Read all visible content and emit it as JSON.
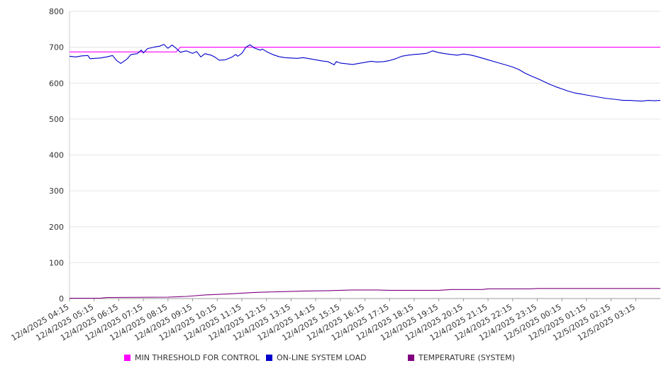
{
  "chart_data": {
    "type": "line",
    "title": "",
    "xlabel": "",
    "ylabel": "",
    "ylim": [
      0,
      800
    ],
    "yticks": [
      0,
      100,
      200,
      300,
      400,
      500,
      600,
      700,
      800
    ],
    "grid": true,
    "legend_position": "bottom",
    "x_ticks": [
      "12/4/2025 04:15",
      "12/4/2025 05:15",
      "12/4/2025 06:15",
      "12/4/2025 07:15",
      "12/4/2025 08:15",
      "12/4/2025 09:15",
      "12/4/2025 10:15",
      "12/4/2025 11:15",
      "12/4/2025 12:15",
      "12/4/2025 13:15",
      "12/4/2025 14:15",
      "12/4/2025 15:15",
      "12/4/2025 16:15",
      "12/4/2025 17:15",
      "12/4/2025 18:15",
      "12/4/2025 19:15",
      "12/4/2025 20:15",
      "12/4/2025 21:15",
      "12/4/2025 22:15",
      "12/4/2025 23:15",
      "12/5/2025 00:15",
      "12/5/2025 01:15",
      "12/5/2025 02:15",
      "12/5/2025 03:15"
    ],
    "x_start": "12/4/2025 04:15",
    "x_end": "12/5/2025 04:15",
    "series": [
      {
        "name": "MIN THRESHOLD FOR CONTROL",
        "color": "#ff00ff",
        "points": [
          [
            "12/4/2025 04:15",
            687
          ],
          [
            "12/4/2025 08:15",
            687
          ],
          [
            "12/4/2025 08:35",
            687
          ],
          [
            "12/4/2025 08:45",
            700
          ],
          [
            "12/5/2025 04:15",
            700
          ]
        ]
      },
      {
        "name": "ON-LINE SYSTEM LOAD",
        "color": "#0000cc",
        "points": [
          [
            "12/4/2025 04:15",
            675
          ],
          [
            "12/4/2025 04:30",
            673
          ],
          [
            "12/4/2025 04:45",
            676
          ],
          [
            "12/4/2025 05:00",
            677
          ],
          [
            "12/4/2025 05:05",
            668
          ],
          [
            "12/4/2025 05:30",
            670
          ],
          [
            "12/4/2025 05:45",
            673
          ],
          [
            "12/4/2025 06:00",
            677
          ],
          [
            "12/4/2025 06:10",
            663
          ],
          [
            "12/4/2025 06:20",
            655
          ],
          [
            "12/4/2025 06:35",
            667
          ],
          [
            "12/4/2025 06:45",
            680
          ],
          [
            "12/4/2025 07:00",
            682
          ],
          [
            "12/4/2025 07:10",
            692
          ],
          [
            "12/4/2025 07:15",
            684
          ],
          [
            "12/4/2025 07:25",
            696
          ],
          [
            "12/4/2025 07:40",
            700
          ],
          [
            "12/4/2025 07:55",
            703
          ],
          [
            "12/4/2025 08:05",
            708
          ],
          [
            "12/4/2025 08:15",
            697
          ],
          [
            "12/4/2025 08:25",
            706
          ],
          [
            "12/4/2025 08:35",
            697
          ],
          [
            "12/4/2025 08:45",
            686
          ],
          [
            "12/4/2025 09:00",
            690
          ],
          [
            "12/4/2025 09:15",
            683
          ],
          [
            "12/4/2025 09:25",
            688
          ],
          [
            "12/4/2025 09:35",
            673
          ],
          [
            "12/4/2025 09:45",
            682
          ],
          [
            "12/4/2025 10:00",
            678
          ],
          [
            "12/4/2025 10:10",
            672
          ],
          [
            "12/4/2025 10:20",
            664
          ],
          [
            "12/4/2025 10:35",
            665
          ],
          [
            "12/4/2025 10:50",
            672
          ],
          [
            "12/4/2025 11:00",
            680
          ],
          [
            "12/4/2025 11:05",
            675
          ],
          [
            "12/4/2025 11:15",
            683
          ],
          [
            "12/4/2025 11:25",
            700
          ],
          [
            "12/4/2025 11:35",
            707
          ],
          [
            "12/4/2025 11:45",
            698
          ],
          [
            "12/4/2025 12:00",
            692
          ],
          [
            "12/4/2025 12:05",
            695
          ],
          [
            "12/4/2025 12:15",
            688
          ],
          [
            "12/4/2025 12:30",
            680
          ],
          [
            "12/4/2025 12:45",
            674
          ],
          [
            "12/4/2025 13:00",
            671
          ],
          [
            "12/4/2025 13:15",
            670
          ],
          [
            "12/4/2025 13:30",
            669
          ],
          [
            "12/4/2025 13:45",
            671
          ],
          [
            "12/4/2025 14:00",
            668
          ],
          [
            "12/4/2025 14:15",
            665
          ],
          [
            "12/4/2025 14:30",
            662
          ],
          [
            "12/4/2025 14:45",
            660
          ],
          [
            "12/4/2025 15:00",
            651
          ],
          [
            "12/4/2025 15:05",
            660
          ],
          [
            "12/4/2025 15:15",
            656
          ],
          [
            "12/4/2025 15:30",
            654
          ],
          [
            "12/4/2025 15:45",
            652
          ],
          [
            "12/4/2025 16:00",
            655
          ],
          [
            "12/4/2025 16:15",
            658
          ],
          [
            "12/4/2025 16:30",
            661
          ],
          [
            "12/4/2025 16:45",
            659
          ],
          [
            "12/4/2025 17:00",
            660
          ],
          [
            "12/4/2025 17:15",
            663
          ],
          [
            "12/4/2025 17:30",
            668
          ],
          [
            "12/4/2025 17:45",
            675
          ],
          [
            "12/4/2025 18:00",
            678
          ],
          [
            "12/4/2025 18:15",
            680
          ],
          [
            "12/4/2025 18:30",
            681
          ],
          [
            "12/4/2025 18:45",
            683
          ],
          [
            "12/4/2025 19:00",
            690
          ],
          [
            "12/4/2025 19:15",
            685
          ],
          [
            "12/4/2025 19:30",
            682
          ],
          [
            "12/4/2025 19:45",
            680
          ],
          [
            "12/4/2025 20:00",
            678
          ],
          [
            "12/4/2025 20:15",
            681
          ],
          [
            "12/4/2025 20:30",
            679
          ],
          [
            "12/4/2025 20:45",
            675
          ],
          [
            "12/4/2025 21:00",
            670
          ],
          [
            "12/4/2025 21:15",
            665
          ],
          [
            "12/4/2025 21:30",
            660
          ],
          [
            "12/4/2025 21:45",
            655
          ],
          [
            "12/4/2025 22:00",
            650
          ],
          [
            "12/4/2025 22:15",
            645
          ],
          [
            "12/4/2025 22:30",
            638
          ],
          [
            "12/4/2025 22:45",
            628
          ],
          [
            "12/4/2025 23:00",
            620
          ],
          [
            "12/4/2025 23:15",
            613
          ],
          [
            "12/4/2025 23:30",
            605
          ],
          [
            "12/4/2025 23:45",
            597
          ],
          [
            "12/5/2025 00:00",
            590
          ],
          [
            "12/5/2025 00:15",
            584
          ],
          [
            "12/5/2025 00:30",
            578
          ],
          [
            "12/5/2025 00:45",
            573
          ],
          [
            "12/5/2025 01:00",
            570
          ],
          [
            "12/5/2025 01:15",
            567
          ],
          [
            "12/5/2025 01:30",
            564
          ],
          [
            "12/5/2025 01:45",
            561
          ],
          [
            "12/5/2025 02:00",
            558
          ],
          [
            "12/5/2025 02:15",
            556
          ],
          [
            "12/5/2025 02:30",
            554
          ],
          [
            "12/5/2025 02:45",
            552
          ],
          [
            "12/5/2025 03:00",
            552
          ],
          [
            "12/5/2025 03:15",
            551
          ],
          [
            "12/5/2025 03:30",
            550
          ],
          [
            "12/5/2025 03:45",
            552
          ],
          [
            "12/5/2025 04:00",
            551
          ],
          [
            "12/5/2025 04:15",
            552
          ]
        ]
      },
      {
        "name": "TEMPERATURE (SYSTEM)",
        "color": "#800080",
        "points": [
          [
            "12/4/2025 04:15",
            1
          ],
          [
            "12/4/2025 05:30",
            1
          ],
          [
            "12/4/2025 05:45",
            3
          ],
          [
            "12/4/2025 08:15",
            4
          ],
          [
            "12/4/2025 09:00",
            6
          ],
          [
            "12/4/2025 09:45",
            10
          ],
          [
            "12/4/2025 10:45",
            13
          ],
          [
            "12/4/2025 11:45",
            17
          ],
          [
            "12/4/2025 12:45",
            19
          ],
          [
            "12/4/2025 13:45",
            21
          ],
          [
            "12/4/2025 14:45",
            22
          ],
          [
            "12/4/2025 15:45",
            24
          ],
          [
            "12/4/2025 16:45",
            24
          ],
          [
            "12/4/2025 17:15",
            23
          ],
          [
            "12/4/2025 19:15",
            23
          ],
          [
            "12/4/2025 19:45",
            25
          ],
          [
            "12/4/2025 21:00",
            25
          ],
          [
            "12/4/2025 21:15",
            27
          ],
          [
            "12/4/2025 23:00",
            27
          ],
          [
            "12/4/2025 23:15",
            28
          ],
          [
            "12/5/2025 04:15",
            28
          ]
        ]
      }
    ]
  }
}
